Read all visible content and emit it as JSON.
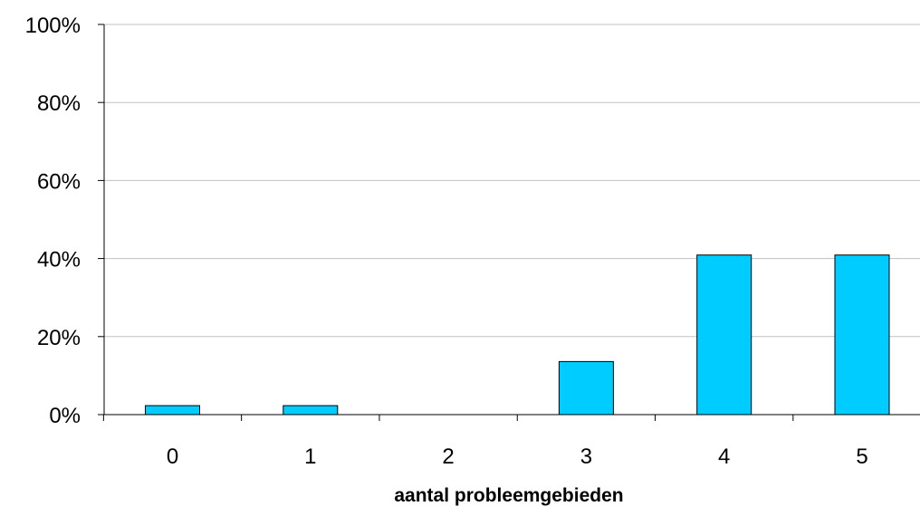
{
  "chart_data": {
    "type": "bar",
    "title": "",
    "xlabel": "aantal probleemgebieden",
    "ylabel": "",
    "categories": [
      "0",
      "1",
      "2",
      "3",
      "4",
      "5"
    ],
    "values": [
      2.3,
      2.3,
      0,
      13.6,
      40.9,
      40.9
    ],
    "ylim": [
      0,
      100
    ],
    "y_ticks": [
      0,
      20,
      40,
      60,
      80,
      100
    ],
    "y_tick_labels": [
      "0%",
      "20%",
      "40%",
      "60%",
      "80%",
      "100%"
    ],
    "grid": true,
    "legend": "none",
    "bar_color": "#00CCFF",
    "bar_edge_color": "#000000",
    "grid_color": "#C0C0C0"
  }
}
